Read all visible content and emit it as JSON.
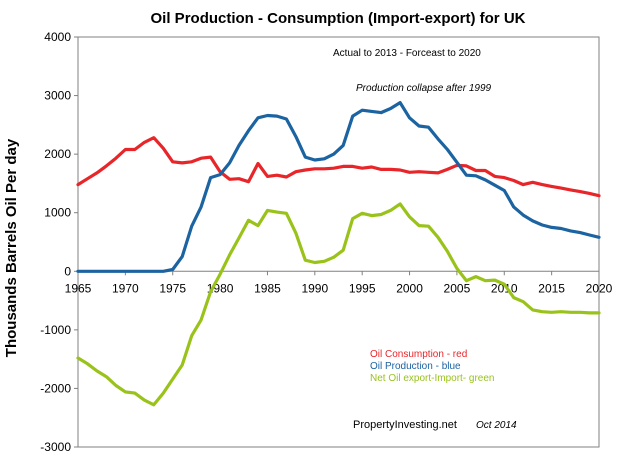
{
  "chart_data": {
    "type": "line",
    "title": "Oil Production - Consumption (Import-export) for UK",
    "xlabel": "",
    "ylabel": "Thousands Barrels Oil Per day",
    "xlim": [
      1965,
      2020
    ],
    "ylim": [
      -3000,
      4000
    ],
    "x_ticks": [
      "1965",
      "1970",
      "1975",
      "1980",
      "1985",
      "1990",
      "1995",
      "2000",
      "2005",
      "2010",
      "2015",
      "2020"
    ],
    "y_ticks": [
      "4000",
      "3000",
      "2000",
      "1000",
      "0",
      "-1000",
      "-2000",
      "-3000"
    ],
    "grid": false,
    "annotations": {
      "subtitle": "Actual to 2013 - Forceast to 2020",
      "collapse": "Production collapse after 1999",
      "credit": "PropertyInvesting.net",
      "date": "Oct 2014"
    },
    "legend": [
      {
        "label": "Oil Consumption - red",
        "color": "#e8262a"
      },
      {
        "label": "Oil Production - blue",
        "color": "#1c63a1"
      },
      {
        "label": "Net Oil export-Import- green",
        "color": "#99c31a"
      }
    ],
    "series": [
      {
        "key": "consumption",
        "color": "#e8262a",
        "x": [
          1965,
          1966,
          1967,
          1968,
          1969,
          1970,
          1971,
          1972,
          1973,
          1974,
          1975,
          1976,
          1977,
          1978,
          1979,
          1980,
          1981,
          1982,
          1983,
          1984,
          1985,
          1986,
          1987,
          1988,
          1989,
          1990,
          1991,
          1992,
          1993,
          1994,
          1995,
          1996,
          1997,
          1998,
          1999,
          2000,
          2001,
          2002,
          2003,
          2004,
          2005,
          2006,
          2007,
          2008,
          2009,
          2010,
          2011,
          2012,
          2013,
          2014,
          2015,
          2016,
          2017,
          2018,
          2019,
          2020
        ],
        "values": [
          1480,
          1580,
          1680,
          1800,
          1930,
          2080,
          2080,
          2200,
          2280,
          2100,
          1870,
          1850,
          1870,
          1930,
          1950,
          1700,
          1570,
          1580,
          1530,
          1840,
          1620,
          1640,
          1610,
          1700,
          1730,
          1750,
          1750,
          1760,
          1790,
          1790,
          1760,
          1780,
          1740,
          1740,
          1730,
          1690,
          1700,
          1690,
          1680,
          1740,
          1810,
          1800,
          1720,
          1720,
          1620,
          1600,
          1550,
          1480,
          1520,
          1480,
          1450,
          1420,
          1390,
          1360,
          1330,
          1290
        ]
      },
      {
        "key": "production",
        "color": "#1c63a1",
        "x": [
          1965,
          1966,
          1967,
          1968,
          1969,
          1970,
          1971,
          1972,
          1973,
          1974,
          1975,
          1976,
          1977,
          1978,
          1979,
          1980,
          1981,
          1982,
          1983,
          1984,
          1985,
          1986,
          1987,
          1988,
          1989,
          1990,
          1991,
          1992,
          1993,
          1994,
          1995,
          1996,
          1997,
          1998,
          1999,
          2000,
          2001,
          2002,
          2003,
          2004,
          2005,
          2006,
          2007,
          2008,
          2009,
          2010,
          2011,
          2012,
          2013,
          2014,
          2015,
          2016,
          2017,
          2018,
          2019,
          2020
        ],
        "values": [
          0,
          0,
          0,
          0,
          0,
          0,
          0,
          0,
          0,
          0,
          30,
          250,
          770,
          1100,
          1600,
          1650,
          1850,
          2150,
          2400,
          2620,
          2660,
          2650,
          2600,
          2300,
          1950,
          1900,
          1920,
          2000,
          2150,
          2650,
          2750,
          2730,
          2710,
          2780,
          2880,
          2620,
          2480,
          2460,
          2260,
          2080,
          1860,
          1640,
          1630,
          1560,
          1470,
          1380,
          1100,
          960,
          860,
          790,
          750,
          730,
          690,
          660,
          620,
          580
        ]
      },
      {
        "key": "net",
        "color": "#99c31a",
        "x": [
          1965,
          1966,
          1967,
          1968,
          1969,
          1970,
          1971,
          1972,
          1973,
          1974,
          1975,
          1976,
          1977,
          1978,
          1979,
          1980,
          1981,
          1982,
          1983,
          1984,
          1985,
          1986,
          1987,
          1988,
          1989,
          1990,
          1991,
          1992,
          1993,
          1994,
          1995,
          1996,
          1997,
          1998,
          1999,
          2000,
          2001,
          2002,
          2003,
          2004,
          2005,
          2006,
          2007,
          2008,
          2009,
          2010,
          2011,
          2012,
          2013,
          2014,
          2015,
          2016,
          2017,
          2018,
          2019,
          2020
        ],
        "values": [
          -1480,
          -1580,
          -1700,
          -1800,
          -1950,
          -2060,
          -2080,
          -2200,
          -2280,
          -2080,
          -1840,
          -1600,
          -1100,
          -830,
          -350,
          -50,
          280,
          570,
          870,
          780,
          1040,
          1010,
          990,
          650,
          190,
          150,
          170,
          240,
          360,
          900,
          990,
          950,
          970,
          1040,
          1150,
          930,
          780,
          770,
          580,
          340,
          50,
          -160,
          -90,
          -160,
          -150,
          -220,
          -450,
          -520,
          -660,
          -690,
          -700,
          -690,
          -700,
          -700,
          -710,
          -710
        ]
      }
    ]
  }
}
